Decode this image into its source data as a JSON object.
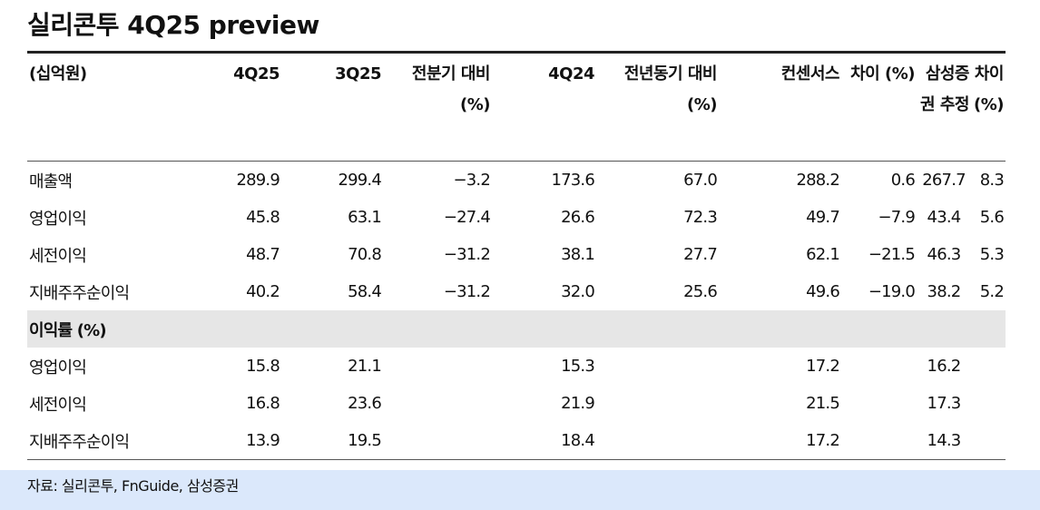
{
  "title": "실리콘투 4Q25 preview",
  "table": {
    "header": [
      "(십억원)",
      "4Q25",
      "3Q25",
      "전분기 대비 (%)",
      "4Q24",
      "전년동기 대비 (%)",
      "컨센서스",
      "차이 (%)",
      "삼성증권 추정",
      "차이 (%)"
    ],
    "rows": [
      [
        "매출액",
        "289.9",
        "299.4",
        "−3.2",
        "173.6",
        "67.0",
        "288.2",
        "0.6",
        "267.7",
        "8.3"
      ],
      [
        "영업이익",
        "45.8",
        "63.1",
        "−27.4",
        "26.6",
        "72.3",
        "49.7",
        "−7.9",
        "43.4",
        "5.6"
      ],
      [
        "세전이익",
        "48.7",
        "70.8",
        "−31.2",
        "38.1",
        "27.7",
        "62.1",
        "−21.5",
        "46.3",
        "5.3"
      ],
      [
        "지배주주순이익",
        "40.2",
        "58.4",
        "−31.2",
        "32.0",
        "25.6",
        "49.6",
        "−19.0",
        "38.2",
        "5.2"
      ]
    ],
    "section": "이익률 (%)",
    "section_rows": [
      [
        "영업이익",
        "15.8",
        "21.1",
        null,
        "15.3",
        null,
        "17.2",
        null,
        "16.2",
        null
      ],
      [
        "세전이익",
        "16.8",
        "23.6",
        null,
        "21.9",
        null,
        "21.5",
        null,
        "17.3",
        null
      ],
      [
        "지배주주순이익",
        "13.9",
        "19.5",
        null,
        "18.4",
        null,
        "17.2",
        null,
        "14.3",
        null
      ]
    ]
  },
  "source": "자료: 실리콘투, FnGuide, 삼성증권"
}
